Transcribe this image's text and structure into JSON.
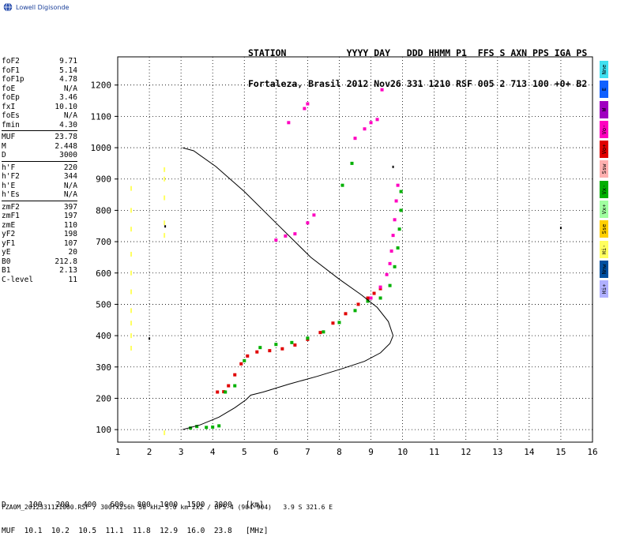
{
  "logo": {
    "text": "Lowell Digisonde"
  },
  "header": {
    "line1": "STATION           YYYY DAY   DDD HHMM P1  FFS S AXN PPS IGA PS",
    "line2": "Fortaleza, Brasil 2012 Nov26 331 1210 RSF 005 2 713 100 +0+ B2"
  },
  "params": {
    "group1": [
      {
        "k": "foF2",
        "v": "9.71"
      },
      {
        "k": "foF1",
        "v": "5.14"
      },
      {
        "k": "foF1p",
        "v": "4.78"
      },
      {
        "k": "foE",
        "v": "N/A"
      },
      {
        "k": "foEp",
        "v": "3.46"
      },
      {
        "k": "fxI",
        "v": "10.10"
      },
      {
        "k": "foEs",
        "v": "N/A"
      },
      {
        "k": "fmin",
        "v": "4.30"
      }
    ],
    "group2": [
      {
        "k": "MUF",
        "v": "23.78"
      },
      {
        "k": "M",
        "v": "2.448"
      },
      {
        "k": "D",
        "v": "3000"
      }
    ],
    "group3": [
      {
        "k": "h'F",
        "v": "220"
      },
      {
        "k": "h'F2",
        "v": "344"
      },
      {
        "k": "h'E",
        "v": "N/A"
      },
      {
        "k": "h'Es",
        "v": "N/A"
      }
    ],
    "group4": [
      {
        "k": "zmF2",
        "v": "397"
      },
      {
        "k": "zmF1",
        "v": "197"
      },
      {
        "k": "zmE",
        "v": "110"
      },
      {
        "k": "yF2",
        "v": "198"
      },
      {
        "k": "yF1",
        "v": "107"
      },
      {
        "k": "yE",
        "v": "20"
      },
      {
        "k": "B0",
        "v": "212.8"
      },
      {
        "k": "B1",
        "v": "2.13"
      },
      {
        "k": "C-level",
        "v": "11"
      }
    ]
  },
  "muf_table": {
    "d_line": "D     100   200   400   600   800  1000  1500  3000   [km]",
    "muf_line": "MUF  10.1  10.2  10.5  11.1  11.8  12.9  16.0  23.8   [MHz]"
  },
  "footer": "FZA0M_2012331121000.RSF / 300fx256h 50 kHz 5.0 km 2x2 / DPS-4 (904-904)   3.9 S 321.6 E",
  "legend": [
    {
      "label": "Nne",
      "color": "#40e0f0"
    },
    {
      "label": "E",
      "color": "#1060ff"
    },
    {
      "label": "W",
      "color": "#a000c0"
    },
    {
      "label": "Vo-",
      "color": "#ff00c0"
    },
    {
      "label": "Vo+",
      "color": "#e00000"
    },
    {
      "label": "Ssw",
      "color": "#ffb0b0"
    },
    {
      "label": "Vx-",
      "color": "#00b000"
    },
    {
      "label": "Vx+",
      "color": "#a0ffa0"
    },
    {
      "label": "Sse",
      "color": "#ffd000"
    },
    {
      "label": "Hi-",
      "color": "#ffff60"
    },
    {
      "label": "Nnw",
      "color": "#0050a0"
    },
    {
      "label": "Hi+",
      "color": "#b0b0ff"
    }
  ],
  "chart_data": {
    "type": "scatter",
    "x_ticks": [
      1,
      2,
      3,
      4,
      5,
      6,
      7,
      8,
      9,
      10,
      11,
      12,
      13,
      14,
      15,
      16
    ],
    "y_ticks": [
      100,
      200,
      300,
      400,
      500,
      600,
      700,
      800,
      900,
      1000,
      1100,
      1200
    ],
    "xlim": [
      1,
      16
    ],
    "ylim": [
      60,
      1290
    ],
    "grid": true,
    "colors": {
      "o": "#e00000",
      "o_minus": "#ff00c0",
      "x": "#00b000",
      "x_light": "#a0ffa0",
      "hi": "#ffff60",
      "profile": "#000000"
    },
    "series": [
      {
        "trace": "o-main",
        "color": "#e00000",
        "points": [
          [
            4.15,
            220
          ],
          [
            4.35,
            221
          ],
          [
            4.5,
            240
          ],
          [
            4.7,
            275
          ],
          [
            4.9,
            310
          ],
          [
            5.1,
            335
          ],
          [
            5.4,
            348
          ],
          [
            5.8,
            352
          ],
          [
            6.2,
            358
          ],
          [
            6.6,
            370
          ],
          [
            7.0,
            388
          ],
          [
            7.4,
            410
          ],
          [
            7.8,
            440
          ],
          [
            8.2,
            470
          ],
          [
            8.6,
            500
          ],
          [
            8.9,
            520
          ],
          [
            9.1,
            535
          ],
          [
            9.3,
            550
          ]
        ]
      },
      {
        "trace": "o-upper",
        "color": "#ff00c0",
        "points": [
          [
            9.0,
            520
          ],
          [
            9.3,
            555
          ],
          [
            9.5,
            595
          ],
          [
            9.6,
            630
          ],
          [
            9.65,
            670
          ],
          [
            9.7,
            720
          ],
          [
            9.75,
            770
          ],
          [
            9.8,
            830
          ],
          [
            9.85,
            880
          ],
          [
            6.0,
            705
          ],
          [
            6.3,
            718
          ],
          [
            6.6,
            725
          ],
          [
            7.0,
            760
          ],
          [
            7.2,
            785
          ],
          [
            8.5,
            1030
          ],
          [
            8.8,
            1060
          ],
          [
            9.0,
            1080
          ],
          [
            9.2,
            1090
          ],
          [
            6.9,
            1125
          ],
          [
            7.0,
            1140
          ],
          [
            9.35,
            1185
          ],
          [
            6.4,
            1080
          ]
        ]
      },
      {
        "trace": "x-main",
        "color": "#00b000",
        "points": [
          [
            4.4,
            220
          ],
          [
            4.7,
            240
          ],
          [
            5.0,
            320
          ],
          [
            5.5,
            362
          ],
          [
            6.0,
            372
          ],
          [
            6.5,
            378
          ],
          [
            7.0,
            392
          ],
          [
            7.5,
            412
          ],
          [
            8.0,
            442
          ],
          [
            8.5,
            480
          ],
          [
            8.9,
            510
          ],
          [
            9.3,
            520
          ],
          [
            9.6,
            560
          ],
          [
            9.75,
            620
          ],
          [
            9.85,
            680
          ],
          [
            9.9,
            740
          ],
          [
            9.95,
            800
          ],
          [
            9.95,
            860
          ],
          [
            8.1,
            880
          ],
          [
            8.4,
            950
          ]
        ]
      },
      {
        "trace": "E-region",
        "color": "#00b000",
        "points": [
          [
            3.3,
            105
          ],
          [
            3.5,
            110
          ],
          [
            3.8,
            107
          ],
          [
            4.0,
            108
          ],
          [
            4.2,
            112
          ]
        ]
      },
      {
        "trace": "hi-scatter",
        "color": "#ffff60",
        "points": [
          [
            1.45,
            870
          ],
          [
            1.45,
            800
          ],
          [
            1.45,
            740
          ],
          [
            1.45,
            660
          ],
          [
            1.45,
            600
          ],
          [
            1.45,
            540
          ],
          [
            1.45,
            480
          ],
          [
            1.45,
            440
          ],
          [
            1.45,
            400
          ],
          [
            1.45,
            360
          ],
          [
            2.5,
            930
          ],
          [
            2.5,
            900
          ],
          [
            2.5,
            840
          ],
          [
            2.5,
            760
          ],
          [
            2.5,
            720
          ],
          [
            2.5,
            90
          ]
        ]
      },
      {
        "trace": "profile",
        "color": "#000000",
        "points": [
          [
            3.05,
            100
          ],
          [
            3.6,
            115
          ],
          [
            4.2,
            140
          ],
          [
            4.7,
            170
          ],
          [
            5.05,
            195
          ],
          [
            5.2,
            210
          ],
          [
            5.6,
            220
          ],
          [
            6.4,
            245
          ],
          [
            7.3,
            270
          ],
          [
            8.1,
            295
          ],
          [
            8.8,
            318
          ],
          [
            9.3,
            345
          ],
          [
            9.6,
            375
          ],
          [
            9.7,
            400
          ],
          [
            9.55,
            445
          ],
          [
            9.2,
            490
          ],
          [
            8.7,
            530
          ],
          [
            8.0,
            580
          ],
          [
            7.1,
            650
          ],
          [
            6.0,
            760
          ],
          [
            5.0,
            860
          ],
          [
            4.1,
            940
          ],
          [
            3.4,
            990
          ],
          [
            3.05,
            1000
          ]
        ]
      }
    ]
  }
}
